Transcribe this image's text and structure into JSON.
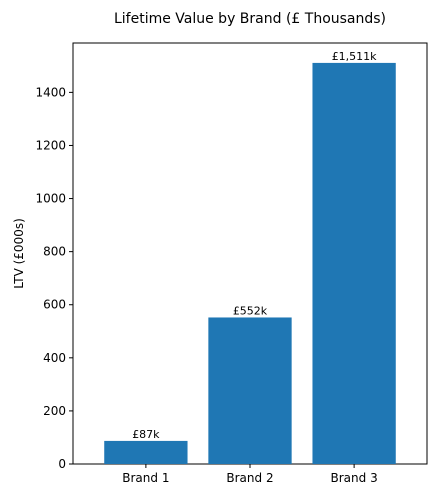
{
  "chart_data": {
    "type": "bar",
    "title": "Lifetime Value by Brand (£ Thousands)",
    "xlabel": "",
    "ylabel": "LTV (£000s)",
    "categories": [
      "Brand 1",
      "Brand 2",
      "Brand 3"
    ],
    "values": [
      87,
      552,
      1511
    ],
    "data_labels": [
      "£87k",
      "£552k",
      "£1,511k"
    ],
    "ylim": [
      0,
      1586
    ],
    "yticks": [
      0,
      200,
      400,
      600,
      800,
      1000,
      1200,
      1400
    ],
    "bar_color": "#1f77b4",
    "grid": false,
    "legend": "none"
  }
}
